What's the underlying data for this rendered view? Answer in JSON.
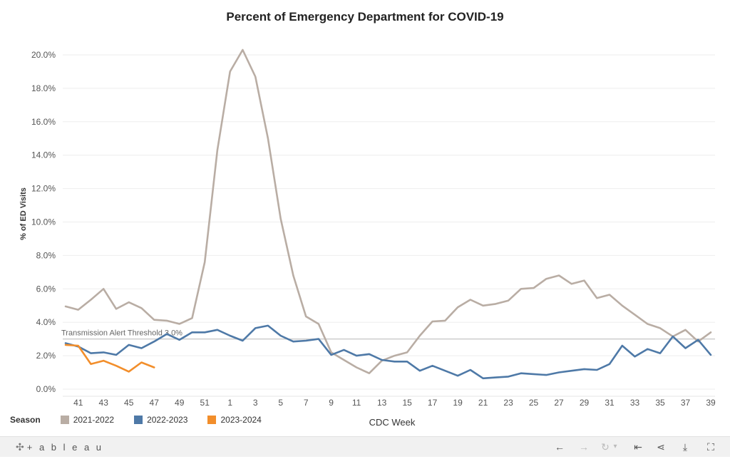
{
  "chart_data": {
    "type": "line",
    "title": "Percent of Emergency Department for COVID-19",
    "xlabel": "CDC Week",
    "ylabel": "% of ED Visits",
    "ylim": [
      0,
      21
    ],
    "y_ticks": [
      "0.0%",
      "2.0%",
      "4.0%",
      "6.0%",
      "8.0%",
      "10.0%",
      "12.0%",
      "14.0%",
      "16.0%",
      "18.0%",
      "20.0%"
    ],
    "x_tick_labels": [
      "41",
      "43",
      "45",
      "47",
      "49",
      "51",
      "1",
      "3",
      "5",
      "7",
      "9",
      "11",
      "13",
      "15",
      "17",
      "19",
      "21",
      "23",
      "25",
      "27",
      "29",
      "31",
      "33",
      "35",
      "37",
      "39"
    ],
    "x_categories": [
      "40",
      "41",
      "42",
      "43",
      "44",
      "45",
      "46",
      "47",
      "48",
      "49",
      "50",
      "51",
      "52",
      "1",
      "2",
      "3",
      "4",
      "5",
      "6",
      "7",
      "8",
      "9",
      "10",
      "11",
      "12",
      "13",
      "14",
      "15",
      "16",
      "17",
      "18",
      "19",
      "20",
      "21",
      "22",
      "23",
      "24",
      "25",
      "26",
      "27",
      "28",
      "29",
      "30",
      "31",
      "32",
      "33",
      "34",
      "35",
      "36",
      "37",
      "38",
      "39"
    ],
    "grid": true,
    "legend_title": "Season",
    "legend_position": "bottom-left",
    "threshold": {
      "label": "Transmission Alert Threshold 3.0%",
      "value": 3.0,
      "color": "#cccccc"
    },
    "series": [
      {
        "name": "2021-2022",
        "color": "#b9ada4",
        "values": [
          4.95,
          4.75,
          5.35,
          6.0,
          4.8,
          5.2,
          4.85,
          4.15,
          4.1,
          3.9,
          4.25,
          7.6,
          14.3,
          19.0,
          20.3,
          18.7,
          15.0,
          10.2,
          6.8,
          4.35,
          3.9,
          2.2,
          1.75,
          1.3,
          0.95,
          1.7,
          2.0,
          2.2,
          3.2,
          4.05,
          4.1,
          4.9,
          5.35,
          5.0,
          5.1,
          5.3,
          6.0,
          6.05,
          6.6,
          6.8,
          6.3,
          6.5,
          5.45,
          5.65,
          5.0,
          4.45,
          3.9,
          3.65,
          3.15,
          3.55,
          2.85,
          3.4
        ]
      },
      {
        "name": "2022-2023",
        "color": "#4e79a7",
        "values": [
          2.75,
          2.55,
          2.15,
          2.2,
          2.05,
          2.65,
          2.45,
          2.85,
          3.3,
          2.95,
          3.4,
          3.4,
          3.55,
          3.2,
          2.9,
          3.65,
          3.8,
          3.2,
          2.85,
          2.9,
          3.0,
          2.05,
          2.35,
          2.0,
          2.1,
          1.75,
          1.65,
          1.65,
          1.1,
          1.4,
          1.1,
          0.8,
          1.15,
          0.65,
          0.7,
          0.75,
          0.95,
          0.9,
          0.85,
          1.0,
          1.1,
          1.2,
          1.15,
          1.5,
          2.6,
          1.95,
          2.4,
          2.15,
          3.15,
          2.45,
          2.95,
          2.05
        ]
      },
      {
        "name": "2023-2024",
        "color": "#f28e2b",
        "values": [
          2.65,
          2.6,
          1.5,
          1.7,
          1.4,
          1.05,
          1.6,
          1.3
        ]
      }
    ]
  },
  "footer": {
    "brand_text": "+ a b l e a u",
    "brand_icon": "tableau-logo-icon",
    "controls": [
      {
        "name": "undo-icon",
        "glyph": "←"
      },
      {
        "name": "redo-icon",
        "glyph": "→"
      },
      {
        "name": "revert-icon",
        "glyph": "↻"
      },
      {
        "name": "revert-menu-icon",
        "glyph": "▾"
      },
      {
        "name": "reset-icon",
        "glyph": "⇤"
      },
      {
        "name": "share-icon",
        "glyph": "⋖"
      },
      {
        "name": "download-icon",
        "glyph": "⤓"
      },
      {
        "name": "fullscreen-icon",
        "glyph": "⛶"
      }
    ]
  }
}
